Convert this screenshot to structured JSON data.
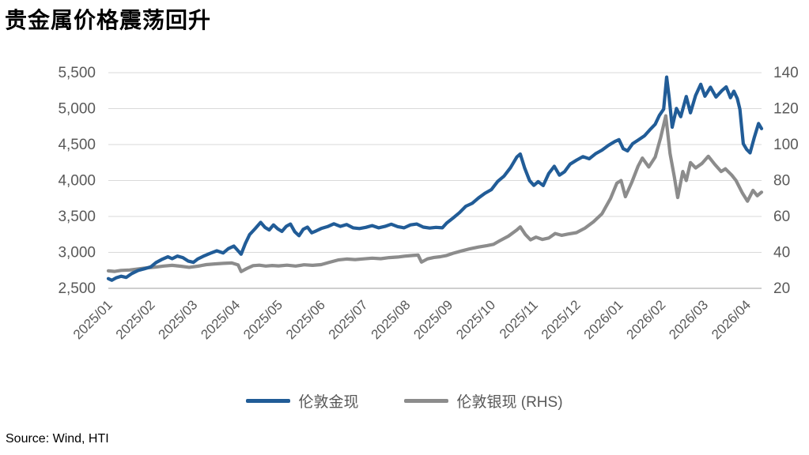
{
  "page": {
    "title": "贵金属价格震荡回升",
    "source": "Source: Wind, HTI"
  },
  "chart_data": {
    "type": "line",
    "title": "贵金属价格震荡回升",
    "source": "Source: Wind, HTI",
    "grid": "horizontal",
    "legend_position": "bottom-center",
    "x_range_months": 15.35,
    "x_tick_labels": [
      "2025/01",
      "2025/02",
      "2025/03",
      "2025/04",
      "2025/05",
      "2025/06",
      "2025/07",
      "2025/08",
      "2025/09",
      "2025/10",
      "2025/11",
      "2025/12",
      "2026/01",
      "2026/02",
      "2026/03",
      "2026/04"
    ],
    "left_axis": {
      "min": 2500,
      "max": 5500,
      "step": 500,
      "tick_labels": [
        "2,500",
        "3,000",
        "3,500",
        "4,000",
        "4,500",
        "5,000",
        "5,500"
      ]
    },
    "right_axis": {
      "min": 20,
      "max": 140,
      "step": 20,
      "tick_labels": [
        "20",
        "40",
        "60",
        "80",
        "100",
        "120",
        "140"
      ]
    },
    "axis_text_color": "#595959",
    "gridline_color": "#d9d9d9",
    "axis_line_color": "#bfbfbf",
    "series": [
      {
        "name": "伦敦银现 (RHS)",
        "axis": "right",
        "color": "#8c8c8c",
        "points": [
          [
            0,
            29.7
          ],
          [
            0.15,
            29.4
          ],
          [
            0.3,
            30
          ],
          [
            0.5,
            30.2
          ],
          [
            0.7,
            30.8
          ],
          [
            0.9,
            31.4
          ],
          [
            1.1,
            31.8
          ],
          [
            1.3,
            32.4
          ],
          [
            1.5,
            32.8
          ],
          [
            1.7,
            32.3
          ],
          [
            1.9,
            31.7
          ],
          [
            2.1,
            32.3
          ],
          [
            2.3,
            33.2
          ],
          [
            2.5,
            33.6
          ],
          [
            2.7,
            33.9
          ],
          [
            2.9,
            34.1
          ],
          [
            3.05,
            33
          ],
          [
            3.12,
            29.3
          ],
          [
            3.25,
            31
          ],
          [
            3.4,
            32.6
          ],
          [
            3.55,
            32.9
          ],
          [
            3.7,
            32.4
          ],
          [
            3.85,
            32.7
          ],
          [
            4,
            32.5
          ],
          [
            4.2,
            32.9
          ],
          [
            4.4,
            32.4
          ],
          [
            4.6,
            33.1
          ],
          [
            4.8,
            32.8
          ],
          [
            5,
            33.2
          ],
          [
            5.2,
            34.5
          ],
          [
            5.4,
            35.8
          ],
          [
            5.6,
            36.3
          ],
          [
            5.8,
            36
          ],
          [
            6,
            36.4
          ],
          [
            6.2,
            36.8
          ],
          [
            6.4,
            36.5
          ],
          [
            6.6,
            37.1
          ],
          [
            6.8,
            37.4
          ],
          [
            7,
            38
          ],
          [
            7.15,
            38.3
          ],
          [
            7.28,
            38.5
          ],
          [
            7.36,
            34.6
          ],
          [
            7.5,
            36.4
          ],
          [
            7.65,
            37.2
          ],
          [
            7.8,
            37.6
          ],
          [
            7.95,
            38.3
          ],
          [
            8.1,
            39.5
          ],
          [
            8.3,
            40.8
          ],
          [
            8.5,
            42
          ],
          [
            8.7,
            43
          ],
          [
            8.9,
            43.8
          ],
          [
            9.05,
            44.5
          ],
          [
            9.2,
            46.5
          ],
          [
            9.4,
            49
          ],
          [
            9.6,
            52.5
          ],
          [
            9.68,
            54.2
          ],
          [
            9.8,
            50
          ],
          [
            9.92,
            47
          ],
          [
            10.05,
            48.5
          ],
          [
            10.2,
            47.2
          ],
          [
            10.35,
            48
          ],
          [
            10.5,
            50.5
          ],
          [
            10.65,
            49.5
          ],
          [
            10.8,
            50.2
          ],
          [
            11,
            51
          ],
          [
            11.2,
            53.5
          ],
          [
            11.4,
            57
          ],
          [
            11.6,
            61.5
          ],
          [
            11.8,
            70
          ],
          [
            11.95,
            78.5
          ],
          [
            12.05,
            80
          ],
          [
            12.15,
            71
          ],
          [
            12.3,
            79
          ],
          [
            12.45,
            88
          ],
          [
            12.55,
            92.5
          ],
          [
            12.7,
            87.5
          ],
          [
            12.85,
            93
          ],
          [
            12.98,
            104
          ],
          [
            13.1,
            116
          ],
          [
            13.2,
            95
          ],
          [
            13.3,
            82
          ],
          [
            13.38,
            70.5
          ],
          [
            13.5,
            85
          ],
          [
            13.58,
            80
          ],
          [
            13.68,
            90
          ],
          [
            13.8,
            87
          ],
          [
            13.95,
            89.5
          ],
          [
            14.1,
            93.5
          ],
          [
            14.25,
            89
          ],
          [
            14.4,
            85
          ],
          [
            14.5,
            86.5
          ],
          [
            14.65,
            83
          ],
          [
            14.75,
            80
          ],
          [
            14.9,
            73
          ],
          [
            15.02,
            68.5
          ],
          [
            15.15,
            74.5
          ],
          [
            15.25,
            71.5
          ],
          [
            15.35,
            73.5
          ]
        ]
      },
      {
        "name": "伦敦金现",
        "axis": "left",
        "color": "#215c97",
        "points": [
          [
            0,
            2635
          ],
          [
            0.08,
            2612
          ],
          [
            0.18,
            2645
          ],
          [
            0.3,
            2668
          ],
          [
            0.42,
            2652
          ],
          [
            0.55,
            2705
          ],
          [
            0.7,
            2748
          ],
          [
            0.85,
            2772
          ],
          [
            1,
            2800
          ],
          [
            1.12,
            2858
          ],
          [
            1.25,
            2900
          ],
          [
            1.4,
            2938
          ],
          [
            1.5,
            2912
          ],
          [
            1.62,
            2948
          ],
          [
            1.75,
            2928
          ],
          [
            1.88,
            2878
          ],
          [
            2,
            2862
          ],
          [
            2.1,
            2908
          ],
          [
            2.25,
            2952
          ],
          [
            2.4,
            2988
          ],
          [
            2.55,
            3022
          ],
          [
            2.7,
            2992
          ],
          [
            2.82,
            3052
          ],
          [
            2.95,
            3088
          ],
          [
            3.05,
            3022
          ],
          [
            3.12,
            2975
          ],
          [
            3.22,
            3125
          ],
          [
            3.32,
            3248
          ],
          [
            3.45,
            3330
          ],
          [
            3.58,
            3418
          ],
          [
            3.68,
            3348
          ],
          [
            3.78,
            3312
          ],
          [
            3.88,
            3382
          ],
          [
            3.98,
            3328
          ],
          [
            4.08,
            3292
          ],
          [
            4.18,
            3362
          ],
          [
            4.28,
            3395
          ],
          [
            4.38,
            3288
          ],
          [
            4.48,
            3232
          ],
          [
            4.58,
            3322
          ],
          [
            4.68,
            3352
          ],
          [
            4.78,
            3272
          ],
          [
            4.88,
            3298
          ],
          [
            5,
            3332
          ],
          [
            5.15,
            3358
          ],
          [
            5.3,
            3398
          ],
          [
            5.45,
            3362
          ],
          [
            5.6,
            3388
          ],
          [
            5.75,
            3342
          ],
          [
            5.9,
            3332
          ],
          [
            6.05,
            3348
          ],
          [
            6.2,
            3372
          ],
          [
            6.35,
            3342
          ],
          [
            6.5,
            3362
          ],
          [
            6.65,
            3392
          ],
          [
            6.8,
            3358
          ],
          [
            6.95,
            3342
          ],
          [
            7.1,
            3382
          ],
          [
            7.25,
            3395
          ],
          [
            7.4,
            3352
          ],
          [
            7.55,
            3338
          ],
          [
            7.7,
            3348
          ],
          [
            7.85,
            3342
          ],
          [
            7.95,
            3408
          ],
          [
            8.1,
            3478
          ],
          [
            8.25,
            3552
          ],
          [
            8.4,
            3642
          ],
          [
            8.55,
            3682
          ],
          [
            8.7,
            3758
          ],
          [
            8.85,
            3822
          ],
          [
            9,
            3872
          ],
          [
            9.15,
            3988
          ],
          [
            9.3,
            4062
          ],
          [
            9.45,
            4178
          ],
          [
            9.6,
            4328
          ],
          [
            9.68,
            4368
          ],
          [
            9.78,
            4178
          ],
          [
            9.9,
            3998
          ],
          [
            10,
            3932
          ],
          [
            10.1,
            3985
          ],
          [
            10.22,
            3930
          ],
          [
            10.35,
            4098
          ],
          [
            10.48,
            4198
          ],
          [
            10.6,
            4075
          ],
          [
            10.72,
            4122
          ],
          [
            10.85,
            4228
          ],
          [
            11,
            4282
          ],
          [
            11.15,
            4332
          ],
          [
            11.3,
            4302
          ],
          [
            11.45,
            4372
          ],
          [
            11.6,
            4422
          ],
          [
            11.75,
            4488
          ],
          [
            11.9,
            4542
          ],
          [
            12,
            4568
          ],
          [
            12.1,
            4442
          ],
          [
            12.2,
            4412
          ],
          [
            12.32,
            4512
          ],
          [
            12.45,
            4562
          ],
          [
            12.6,
            4622
          ],
          [
            12.72,
            4702
          ],
          [
            12.85,
            4782
          ],
          [
            12.95,
            4908
          ],
          [
            13.05,
            4992
          ],
          [
            13.12,
            5438
          ],
          [
            13.18,
            5152
          ],
          [
            13.25,
            4742
          ],
          [
            13.35,
            5002
          ],
          [
            13.45,
            4888
          ],
          [
            13.58,
            5168
          ],
          [
            13.68,
            4942
          ],
          [
            13.8,
            5182
          ],
          [
            13.92,
            5338
          ],
          [
            14.02,
            5172
          ],
          [
            14.15,
            5298
          ],
          [
            14.28,
            5162
          ],
          [
            14.42,
            5252
          ],
          [
            14.52,
            5302
          ],
          [
            14.62,
            5152
          ],
          [
            14.7,
            5242
          ],
          [
            14.78,
            5142
          ],
          [
            14.84,
            4992
          ],
          [
            14.92,
            4512
          ],
          [
            15,
            4432
          ],
          [
            15.08,
            4385
          ],
          [
            15.18,
            4602
          ],
          [
            15.28,
            4792
          ],
          [
            15.35,
            4722
          ]
        ]
      }
    ]
  }
}
